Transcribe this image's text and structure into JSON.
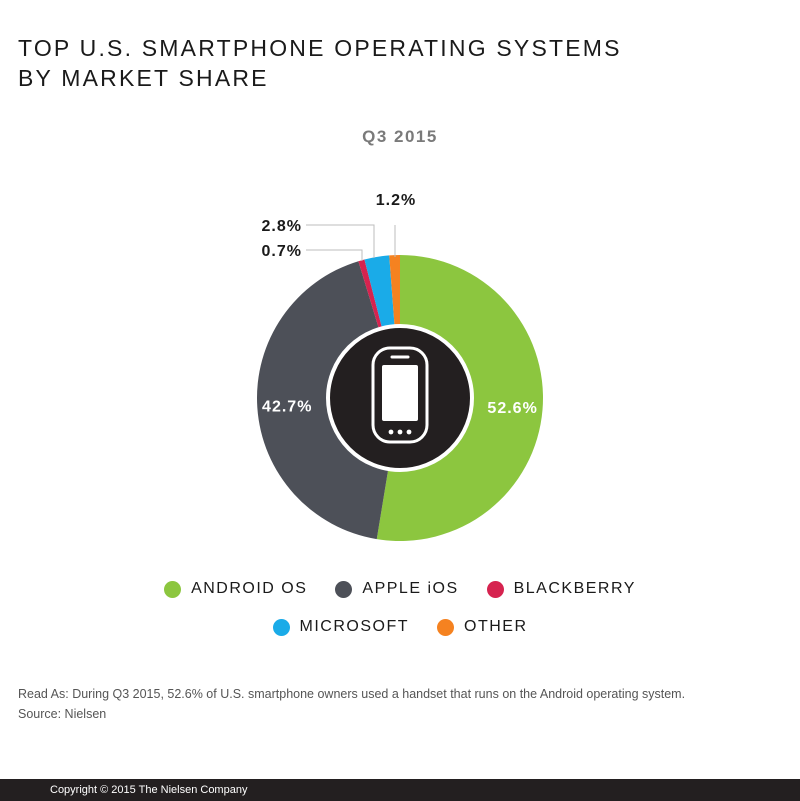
{
  "header": {
    "title_line1": "TOP U.S. SMARTPHONE OPERATING SYSTEMS",
    "title_line2": "BY MARKET SHARE",
    "subtitle": "Q3 2015"
  },
  "colors": {
    "android": "#8cc63f",
    "ios": "#4d5058",
    "blackberry": "#d6234f",
    "microsoft": "#1aabe8",
    "other": "#f58220",
    "center": "#231f20"
  },
  "chart_data": {
    "type": "pie",
    "title": "TOP U.S. SMARTPHONE OPERATING SYSTEMS BY MARKET SHARE",
    "subtitle": "Q3 2015",
    "donut": true,
    "center_icon": "smartphone-icon",
    "slices": [
      {
        "name": "ANDROID OS",
        "value": 52.6,
        "label": "52.6%",
        "color": "#8cc63f"
      },
      {
        "name": "APPLE iOS",
        "value": 42.7,
        "label": "42.7%",
        "color": "#4d5058"
      },
      {
        "name": "BLACKBERRY",
        "value": 0.7,
        "label": "0.7%",
        "color": "#d6234f"
      },
      {
        "name": "MICROSOFT",
        "value": 2.8,
        "label": "2.8%",
        "color": "#1aabe8"
      },
      {
        "name": "OTHER",
        "value": 1.2,
        "label": "1.2%",
        "color": "#f58220"
      }
    ],
    "legend_placement": "bottom"
  },
  "legend": {
    "android": "ANDROID OS",
    "ios": "APPLE iOS",
    "blackberry": "BLACKBERRY",
    "microsoft": "MICROSOFT",
    "other": "OTHER"
  },
  "notes": {
    "read_as": "Read As: During Q3 2015, 52.6% of U.S. smartphone owners used a handset that runs on the Android operating system.",
    "source": "Source: Nielsen"
  },
  "footer": {
    "copyright": "Copyright © 2015 The Nielsen Company"
  }
}
